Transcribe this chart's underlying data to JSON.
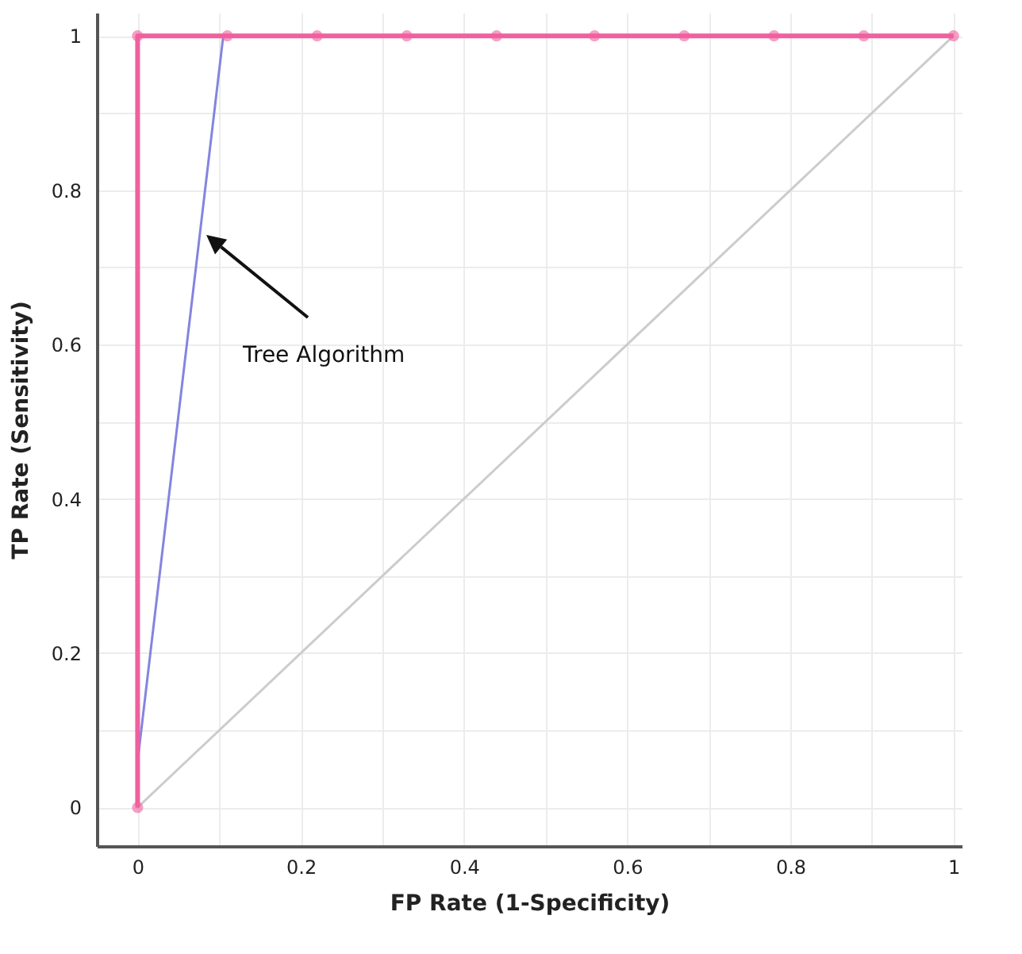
{
  "chart_data": {
    "type": "line",
    "xlabel": "FP Rate (1-Specificity)",
    "ylabel": "TP Rate (Sensitivity)",
    "xlim": [
      -0.05,
      1.01
    ],
    "ylim": [
      -0.05,
      1.03
    ],
    "xticks": [
      0,
      {
        "value": 0.1,
        "label": null
      },
      0.2,
      {
        "value": 0.3,
        "label": null
      },
      0.4,
      {
        "value": 0.5,
        "label": null
      },
      0.6,
      {
        "value": 0.7,
        "label": null
      },
      0.8,
      {
        "value": 0.9,
        "label": null
      },
      1
    ],
    "yticks": [
      0,
      {
        "value": 0.1,
        "label": null
      },
      0.2,
      {
        "value": 0.3,
        "label": null
      },
      0.4,
      {
        "value": 0.5,
        "label": null
      },
      0.6,
      {
        "value": 0.7,
        "label": null
      },
      0.8,
      {
        "value": 0.9,
        "label": null
      },
      1
    ],
    "grid": true,
    "series": [
      {
        "color": "#cccccc",
        "x": [
          0,
          1
        ],
        "values": [
          0,
          1
        ],
        "marker": "none"
      },
      {
        "color": "#8484e0",
        "x": [
          0,
          0,
          0.105
        ],
        "values": [
          0,
          0.06,
          1
        ],
        "marker": "none"
      },
      {
        "color": "#f0609e",
        "x": [
          0,
          0,
          0.11,
          0.22,
          0.33,
          0.44,
          0.56,
          0.67,
          0.78,
          0.89,
          1
        ],
        "values": [
          0,
          1,
          1,
          1,
          1,
          1,
          1,
          1,
          1,
          1,
          1
        ],
        "marker": "circle"
      }
    ],
    "annotations": [
      "Tree Algorithm"
    ]
  }
}
